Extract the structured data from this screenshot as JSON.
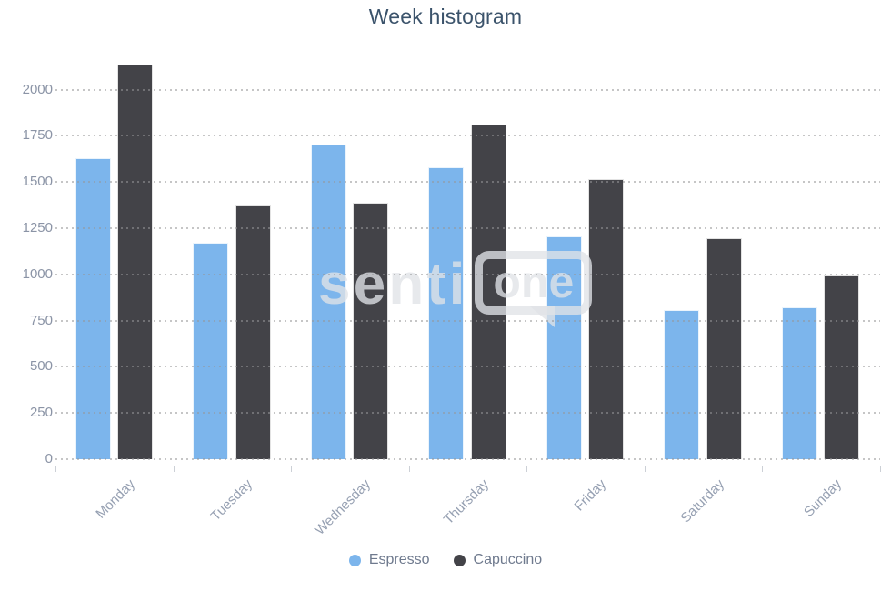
{
  "title": "Week histogram",
  "watermark": {
    "text_left": "senti",
    "text_boxed": "one"
  },
  "legend": {
    "items": [
      {
        "label": "Espresso",
        "color": "#7cb5ec"
      },
      {
        "label": "Capuccino",
        "color": "#434348"
      }
    ]
  },
  "chart_data": {
    "type": "bar",
    "title": "Week histogram",
    "categories": [
      "Monday",
      "Tuesday",
      "Wednesday",
      "Thursday",
      "Friday",
      "Saturday",
      "Sunday"
    ],
    "series": [
      {
        "name": "Espresso",
        "color": "#7cb5ec",
        "values": [
          1630,
          1170,
          1705,
          1580,
          1205,
          805,
          820
        ]
      },
      {
        "name": "Capuccino",
        "color": "#434348",
        "values": [
          2135,
          1375,
          1390,
          1810,
          1515,
          1195,
          995
        ]
      }
    ],
    "xlabel": "",
    "ylabel": "",
    "yticks": [
      0,
      250,
      500,
      750,
      1000,
      1250,
      1500,
      1750,
      2000
    ],
    "ylim": [
      0,
      2200
    ],
    "grid": "dotted-horizontal",
    "legend_position": "bottom"
  },
  "colors": {
    "title": "#3b536b",
    "axis_label": "#8b94a6",
    "category_label": "#96a0b2",
    "legend_text": "#6f7a8e",
    "axis_line": "#ccd0d6"
  }
}
